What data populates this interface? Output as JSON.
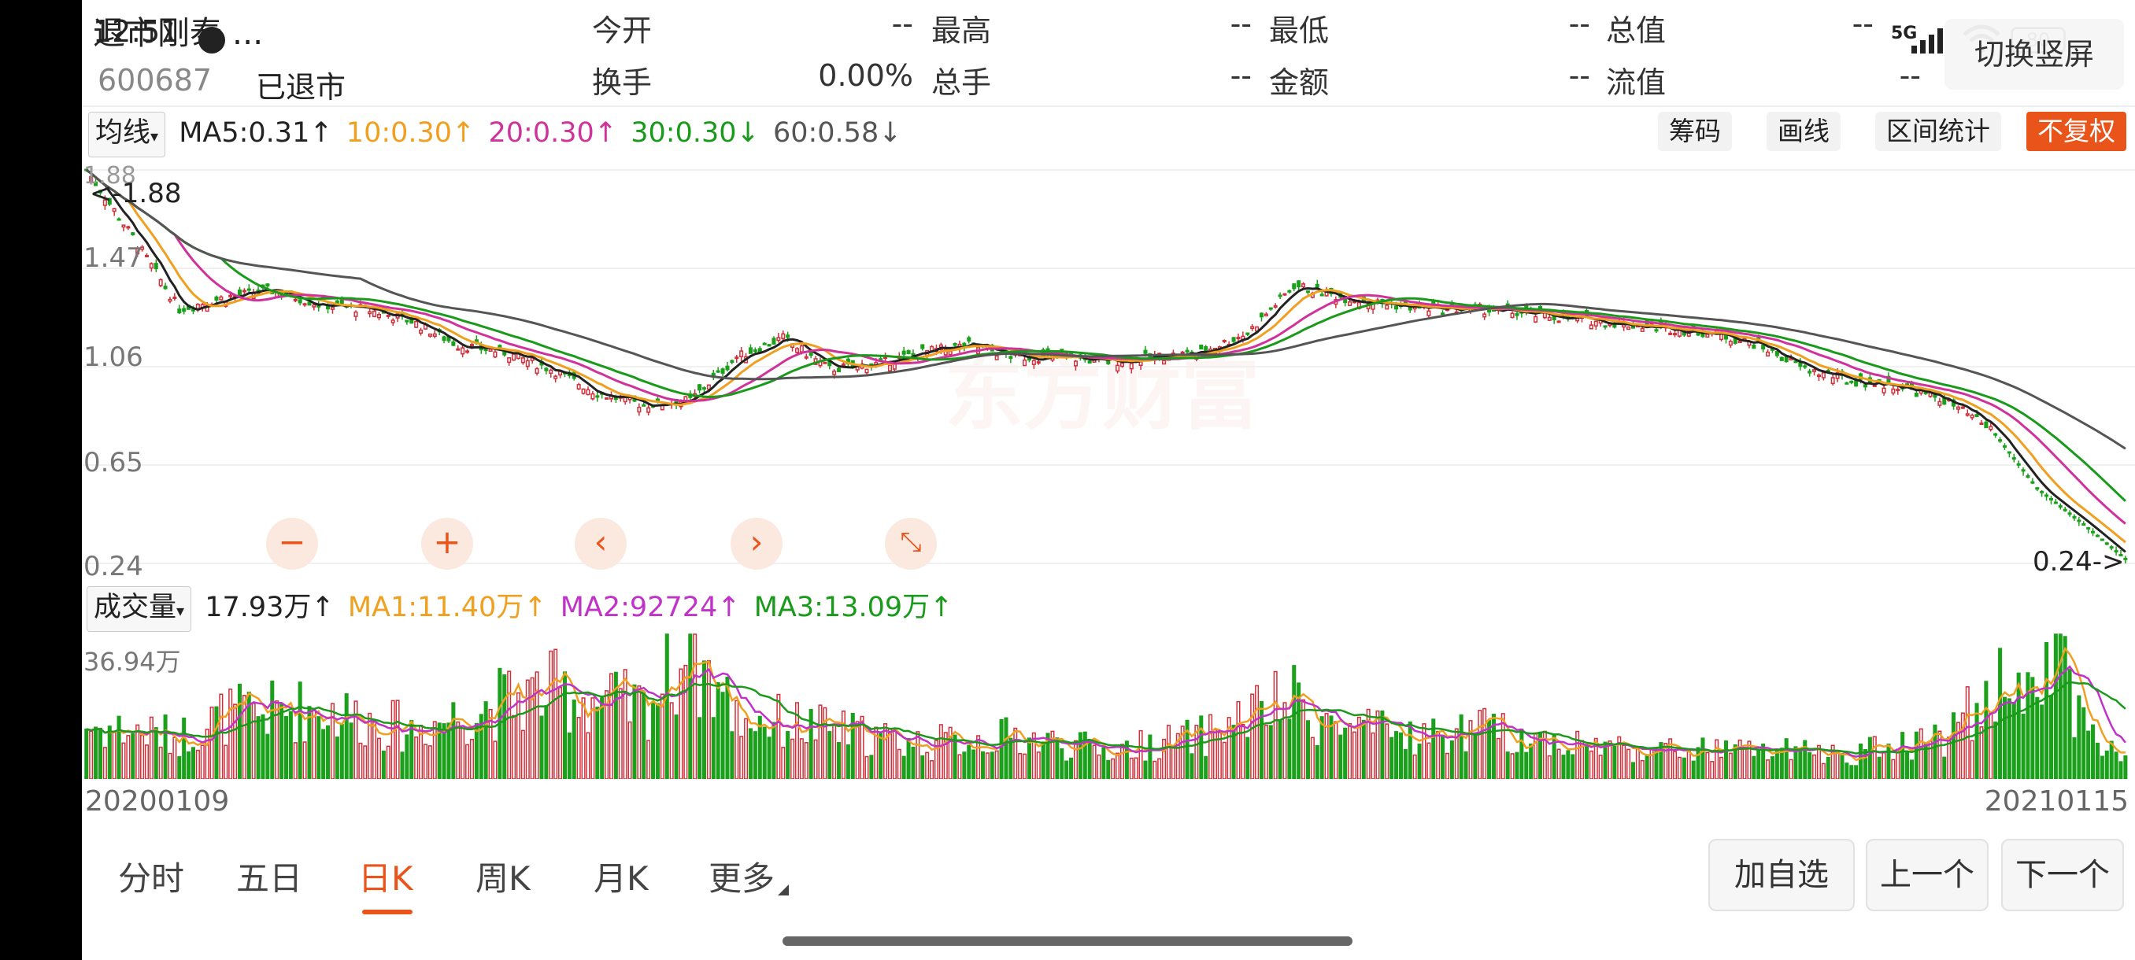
{
  "header": {
    "stock_name": "退市刚泰",
    "name_suffix": "...",
    "stock_code": "600687",
    "status": "已退市",
    "time": "12:51",
    "status_bar_right": "5G",
    "battery": "80",
    "fullscreen_label": "切换竖屏",
    "quotes": [
      {
        "label": "今开",
        "value": "--"
      },
      {
        "label": "最高",
        "value": "--"
      },
      {
        "label": "最低",
        "value": "--"
      },
      {
        "label": "总值",
        "value": "--"
      },
      {
        "label": "换手",
        "value": "0.00%"
      },
      {
        "label": "总手",
        "value": "--"
      },
      {
        "label": "金额",
        "value": "--"
      },
      {
        "label": "流值",
        "value": "--"
      }
    ]
  },
  "toolbar": {
    "ma_select": "均线",
    "ma_items": [
      {
        "text": "MA5:0.31↑",
        "color": "#222222"
      },
      {
        "text": "10:0.30↑",
        "color": "#f0a020"
      },
      {
        "text": "20:0.30↑",
        "color": "#d0329c"
      },
      {
        "text": "30:0.30↓",
        "color": "#1a9a1a"
      },
      {
        "text": "60:0.58↓",
        "color": "#555555"
      }
    ],
    "buttons": [
      "筹码",
      "画线",
      "区间统计"
    ],
    "fq_label": "不复权"
  },
  "chart_controls": [
    "−",
    "+",
    "‹",
    "›",
    "⤡"
  ],
  "volume_bar": {
    "select": "成交量",
    "items": [
      {
        "text": "17.93万↑",
        "color": "#222222"
      },
      {
        "text": "MA1:11.40万↑",
        "color": "#f0a020"
      },
      {
        "text": "MA2:92724↑",
        "color": "#c032c8"
      },
      {
        "text": "MA3:13.09万↑",
        "color": "#1a9a1a"
      }
    ]
  },
  "colors": {
    "up": "#d0303a",
    "down": "#1aa01a",
    "accent": "#e8541a"
  },
  "icons": [
    "record-icon",
    "signal-icon",
    "wifi-icon",
    "battery-icon",
    "dropdown-icon",
    "zoom-out-icon",
    "zoom-in-icon",
    "prev-icon",
    "next-icon",
    "reset-icon"
  ],
  "chart_data": {
    "type": "candlestick",
    "date_start": "20200109",
    "date_end": "20210115",
    "y_labels": [
      "1.88",
      "1.47",
      "1.06",
      "0.65",
      "0.24"
    ],
    "ylim": [
      0.24,
      1.88
    ],
    "max_label": "1.88",
    "min_label": "0.24",
    "close_anchors": [
      [
        0,
        1.88
      ],
      [
        10,
        1.6
      ],
      [
        20,
        1.3
      ],
      [
        30,
        1.35
      ],
      [
        40,
        1.38
      ],
      [
        50,
        1.32
      ],
      [
        60,
        1.3
      ],
      [
        70,
        1.25
      ],
      [
        80,
        1.15
      ],
      [
        90,
        1.12
      ],
      [
        100,
        1.05
      ],
      [
        110,
        0.95
      ],
      [
        120,
        0.9
      ],
      [
        130,
        0.92
      ],
      [
        140,
        1.1
      ],
      [
        150,
        1.18
      ],
      [
        160,
        1.05
      ],
      [
        170,
        1.07
      ],
      [
        180,
        1.12
      ],
      [
        190,
        1.15
      ],
      [
        200,
        1.1
      ],
      [
        210,
        1.1
      ],
      [
        220,
        1.08
      ],
      [
        230,
        1.1
      ],
      [
        240,
        1.12
      ],
      [
        250,
        1.2
      ],
      [
        260,
        1.4
      ],
      [
        270,
        1.35
      ],
      [
        280,
        1.32
      ],
      [
        290,
        1.3
      ],
      [
        300,
        1.3
      ],
      [
        310,
        1.28
      ],
      [
        320,
        1.26
      ],
      [
        330,
        1.24
      ],
      [
        340,
        1.22
      ],
      [
        350,
        1.2
      ],
      [
        360,
        1.15
      ],
      [
        370,
        1.05
      ],
      [
        380,
        1.0
      ],
      [
        390,
        0.98
      ],
      [
        400,
        0.92
      ],
      [
        410,
        0.8
      ],
      [
        420,
        0.55
      ],
      [
        430,
        0.4
      ],
      [
        440,
        0.24
      ]
    ],
    "volume_max_label": "36.94万",
    "volume_anchors": [
      [
        0,
        15
      ],
      [
        20,
        12
      ],
      [
        30,
        18
      ],
      [
        50,
        20
      ],
      [
        70,
        14
      ],
      [
        90,
        22
      ],
      [
        100,
        25
      ],
      [
        120,
        20
      ],
      [
        130,
        36.94
      ],
      [
        140,
        18
      ],
      [
        160,
        14
      ],
      [
        180,
        10
      ],
      [
        200,
        12
      ],
      [
        220,
        8
      ],
      [
        240,
        12
      ],
      [
        250,
        18
      ],
      [
        260,
        22
      ],
      [
        270,
        14
      ],
      [
        290,
        12
      ],
      [
        300,
        14
      ],
      [
        320,
        10
      ],
      [
        340,
        8
      ],
      [
        360,
        8
      ],
      [
        380,
        7
      ],
      [
        390,
        10
      ],
      [
        400,
        12
      ],
      [
        410,
        24
      ],
      [
        420,
        36
      ],
      [
        425,
        34
      ],
      [
        430,
        14
      ],
      [
        440,
        6
      ]
    ],
    "series": [
      {
        "name": "MA5",
        "color": "#222222",
        "period": 5
      },
      {
        "name": "10",
        "color": "#f0a020",
        "period": 10
      },
      {
        "name": "20",
        "color": "#d0329c",
        "period": 20
      },
      {
        "name": "30",
        "color": "#1a9a1a",
        "period": 30
      },
      {
        "name": "60",
        "color": "#555555",
        "period": 60
      }
    ],
    "volume_series": [
      {
        "name": "MA1",
        "color": "#f0a020",
        "period": 5
      },
      {
        "name": "MA2",
        "color": "#c032c8",
        "period": 10
      },
      {
        "name": "MA3",
        "color": "#1a9a1a",
        "period": 20
      }
    ],
    "watermark": "东方财富",
    "bars": 440
  },
  "tabs": [
    {
      "label": "分时",
      "active": false
    },
    {
      "label": "五日",
      "active": false
    },
    {
      "label": "日K",
      "active": true
    },
    {
      "label": "周K",
      "active": false
    },
    {
      "label": "月K",
      "active": false
    },
    {
      "label": "更多",
      "active": false
    }
  ],
  "actions": [
    "加自选",
    "上一个",
    "下一个"
  ]
}
